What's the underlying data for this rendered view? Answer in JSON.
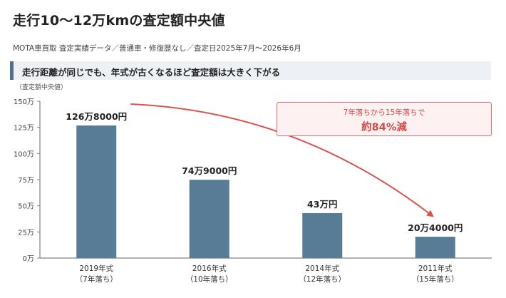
{
  "page": {
    "title": "走行10〜12万kmの査定額中央値",
    "subtitle": "MOTA車買取 査定実績データ／普通車・修復歴なし／査定日2025年7月〜2026年6月",
    "banner": "走行距離が同じでも、年式が古くなるほど査定額は大きく下がる",
    "callout_line1": "7年落ちから15年落ちで",
    "callout_line2": "約84%減"
  },
  "colors": {
    "bar": "#587b96",
    "accent": "#d9534f",
    "banner_border": "#52708e"
  },
  "chart_data": {
    "type": "bar",
    "ylabel": "（査定額中央値）",
    "ylim": [
      0,
      150
    ],
    "yticks": [
      0,
      25,
      50,
      75,
      100,
      125,
      150
    ],
    "ytick_labels": [
      "0万",
      "25万",
      "50万",
      "75万",
      "100万",
      "125万",
      "150万"
    ],
    "categories": [
      [
        "2019年式",
        "（7年落ち）"
      ],
      [
        "2016年式",
        "（10年落ち）"
      ],
      [
        "2014年式",
        "（12年落ち）"
      ],
      [
        "2011年式",
        "（15年落ち）"
      ]
    ],
    "values": [
      126.8,
      74.9,
      43,
      20.4
    ],
    "data_labels": [
      "126万8000円",
      "74万9000円",
      "43万円",
      "20万4000円"
    ],
    "grid": false,
    "legend": "none"
  }
}
